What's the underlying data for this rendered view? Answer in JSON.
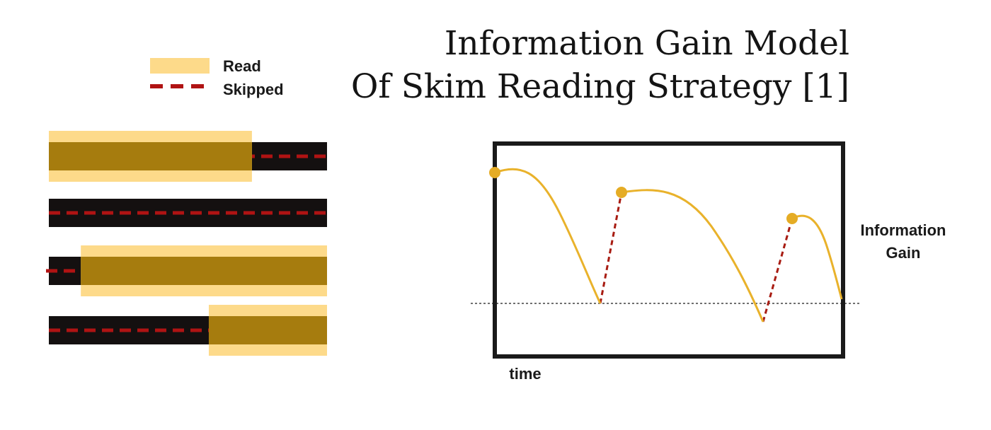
{
  "title": {
    "line1": "Information Gain Model",
    "line2": "Of Skim Reading Strategy [1]"
  },
  "legend": {
    "read_label": "Read",
    "skipped_label": "Skipped"
  },
  "colors": {
    "read_highlight": "#fdda8a",
    "read_fill": "#a67c0e",
    "skipped_bar": "#141010",
    "skipped_dash": "#b01313",
    "curve": "#e9b22b",
    "marker": "#e5ac25",
    "jump_dash": "#a81c12",
    "frame": "#1a1a1a"
  },
  "rows": [
    {
      "read_fraction": [
        0.0,
        0.73
      ]
    },
    {
      "read_fraction": null
    },
    {
      "read_fraction": [
        0.115,
        1.0
      ]
    },
    {
      "read_fraction": [
        0.575,
        1.0
      ]
    }
  ],
  "graph": {
    "y_label_line1": "Information",
    "y_label_line2": "Gain",
    "x_label": "time"
  }
}
